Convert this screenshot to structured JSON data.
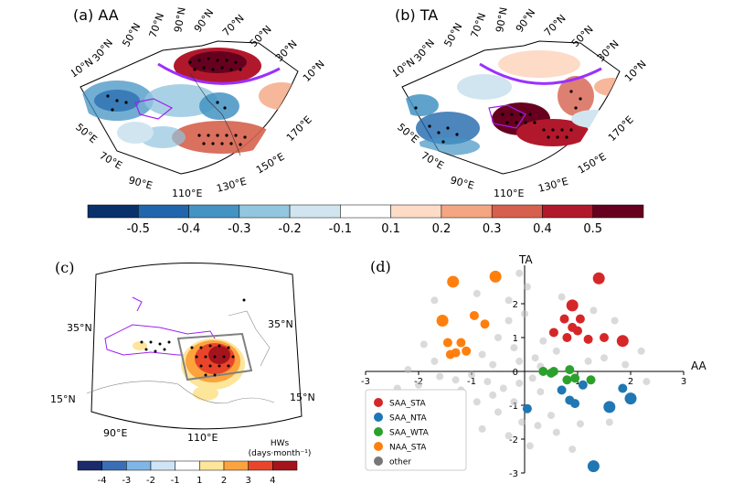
{
  "panels": {
    "a": {
      "label": "(a) AA"
    },
    "b": {
      "label": "(b) TA"
    },
    "c": {
      "label": "(c)"
    },
    "d": {
      "label": "(d)"
    }
  },
  "map_ab": {
    "lat_labels": [
      "10°N",
      "30°N",
      "50°N",
      "70°N",
      "90°N",
      "90°N",
      "70°N",
      "50°N",
      "30°N",
      "10°N"
    ],
    "lon_labels": [
      "50°E",
      "70°E",
      "90°E",
      "110°E",
      "130°E",
      "150°E",
      "170°E"
    ]
  },
  "colorbar_top": {
    "ticks": [
      "-0.5",
      "-0.4",
      "-0.3",
      "-0.2",
      "-0.1",
      "0.1",
      "0.2",
      "0.3",
      "0.4",
      "0.5"
    ],
    "colors": [
      "#08306b",
      "#2166ac",
      "#4393c3",
      "#92c5de",
      "#d1e5f0",
      "#ffffff",
      "#fddbc7",
      "#f4a582",
      "#d6604d",
      "#b2182b",
      "#67001f"
    ]
  },
  "map_c": {
    "lat_labels": [
      "35°N",
      "35°N",
      "15°N",
      "15°N"
    ],
    "lon_labels": [
      "90°E",
      "110°E"
    ]
  },
  "colorbar_c": {
    "title": "HWs",
    "units": "(days·month⁻¹)",
    "ticks": [
      "-4",
      "-3",
      "-2",
      "-1",
      "1",
      "2",
      "3",
      "4"
    ],
    "colors": [
      "#1a2a6c",
      "#3a6fb7",
      "#7fb6e6",
      "#cfe4f5",
      "#ffffff",
      "#fde59a",
      "#fca33d",
      "#e8452a",
      "#a5141c"
    ]
  },
  "chart_data": {
    "type": "scatter",
    "xlabel": "AA",
    "ylabel": "TA",
    "xlim": [
      -3,
      3
    ],
    "ylim": [
      -3,
      3
    ],
    "xticks": [
      "-3",
      "-2",
      "-1",
      "0",
      "1",
      "2",
      "3"
    ],
    "yticks": [
      "-3",
      "-2",
      "-1",
      "0",
      "1",
      "2"
    ],
    "legend_position": "lower-left",
    "series": [
      {
        "name": "SAA_STA",
        "color": "#d62728",
        "points": [
          [
            1.4,
            2.75
          ],
          [
            0.9,
            1.95
          ],
          [
            0.75,
            1.55
          ],
          [
            1.05,
            1.55
          ],
          [
            0.9,
            1.3
          ],
          [
            1.0,
            1.2
          ],
          [
            0.55,
            1.15
          ],
          [
            0.8,
            1.0
          ],
          [
            1.5,
            1.0
          ],
          [
            1.85,
            0.9
          ],
          [
            1.2,
            0.95
          ]
        ]
      },
      {
        "name": "SAA_NTA",
        "color": "#1f77b4",
        "points": [
          [
            1.3,
            -2.8
          ],
          [
            0.05,
            -1.1
          ],
          [
            0.85,
            -0.85
          ],
          [
            0.95,
            -0.95
          ],
          [
            1.6,
            -1.05
          ],
          [
            2.0,
            -0.8
          ],
          [
            1.85,
            -0.5
          ],
          [
            1.1,
            -0.4
          ],
          [
            0.7,
            -0.55
          ]
        ]
      },
      {
        "name": "SAA_WTA",
        "color": "#2ca02c",
        "points": [
          [
            0.35,
            0.0
          ],
          [
            0.55,
            0.0
          ],
          [
            0.85,
            0.05
          ],
          [
            0.8,
            -0.25
          ],
          [
            0.95,
            -0.2
          ],
          [
            1.25,
            -0.25
          ],
          [
            0.5,
            -0.05
          ]
        ]
      },
      {
        "name": "NAA_STA",
        "color": "#ff7f0e",
        "points": [
          [
            -0.55,
            2.8
          ],
          [
            -1.35,
            2.65
          ],
          [
            -0.95,
            1.65
          ],
          [
            -1.55,
            1.5
          ],
          [
            -0.75,
            1.4
          ],
          [
            -1.2,
            0.85
          ],
          [
            -1.45,
            0.85
          ],
          [
            -1.3,
            0.55
          ],
          [
            -1.1,
            0.6
          ],
          [
            -1.4,
            0.5
          ]
        ]
      },
      {
        "name": "other",
        "color": "#bbbbbb",
        "points": [
          [
            -0.3,
            2.1
          ],
          [
            0.05,
            2.5
          ],
          [
            -0.1,
            2.9
          ],
          [
            0.0,
            1.7
          ],
          [
            -0.5,
            1.0
          ],
          [
            -0.2,
            0.7
          ],
          [
            -0.8,
            0.5
          ],
          [
            -0.1,
            0.3
          ],
          [
            0.2,
            0.4
          ],
          [
            0.35,
            0.9
          ],
          [
            -0.6,
            0.2
          ],
          [
            -1.9,
            0.8
          ],
          [
            -1.7,
            0.3
          ],
          [
            -2.2,
            0.05
          ],
          [
            -1.6,
            -0.15
          ],
          [
            -1.3,
            -0.25
          ],
          [
            -1.0,
            -0.1
          ],
          [
            -0.7,
            -0.3
          ],
          [
            -0.4,
            -0.5
          ],
          [
            -0.1,
            -0.35
          ],
          [
            0.15,
            -0.2
          ],
          [
            0.3,
            -0.6
          ],
          [
            -0.2,
            -0.9
          ],
          [
            -0.5,
            -1.2
          ],
          [
            -0.9,
            -0.9
          ],
          [
            -1.2,
            -0.55
          ],
          [
            -1.6,
            -0.7
          ],
          [
            -2.0,
            -0.4
          ],
          [
            -0.05,
            -1.5
          ],
          [
            0.25,
            -1.6
          ],
          [
            -0.3,
            -1.9
          ],
          [
            0.1,
            -2.2
          ],
          [
            0.5,
            -1.3
          ],
          [
            0.6,
            -1.8
          ],
          [
            1.05,
            -1.55
          ],
          [
            1.6,
            -1.5
          ],
          [
            1.5,
            0.4
          ],
          [
            1.9,
            0.2
          ],
          [
            1.2,
            0.3
          ],
          [
            1.7,
            1.5
          ],
          [
            1.3,
            1.8
          ],
          [
            0.7,
            2.2
          ],
          [
            0.6,
            0.6
          ],
          [
            -0.3,
            1.5
          ],
          [
            -0.9,
            2.3
          ],
          [
            -1.7,
            2.1
          ],
          [
            -2.4,
            -0.5
          ],
          [
            -0.8,
            -1.7
          ],
          [
            -1.4,
            -1.1
          ],
          [
            0.9,
            -2.3
          ],
          [
            2.3,
            -0.3
          ],
          [
            2.2,
            0.6
          ],
          [
            0.3,
            0.15
          ],
          [
            -0.6,
            -0.7
          ]
        ]
      }
    ]
  }
}
